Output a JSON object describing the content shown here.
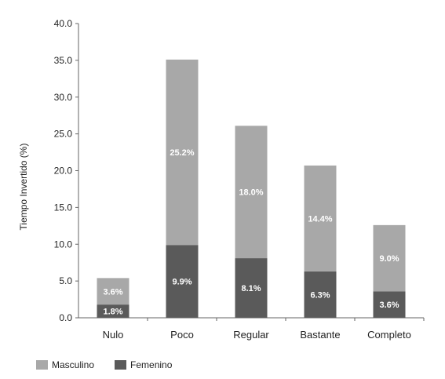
{
  "chart_data": {
    "type": "bar",
    "stacked": true,
    "categories": [
      "Nulo",
      "Poco",
      "Regular",
      "Bastante",
      "Completo"
    ],
    "series": [
      {
        "name": "Femenino",
        "color": "#5a5a5a",
        "values": [
          1.8,
          9.9,
          8.1,
          6.3,
          3.6
        ],
        "labels": [
          "1.8%",
          "9.9%",
          "8.1%",
          "6.3%",
          "3.6%"
        ]
      },
      {
        "name": "Masculino",
        "color": "#a8a8a8",
        "values": [
          3.6,
          25.2,
          18.0,
          14.4,
          9.0
        ],
        "labels": [
          "3.6%",
          "25.2%",
          "18.0%",
          "14.4%",
          "9.0%"
        ]
      }
    ],
    "ylabel": "Tiempo Invertido (%)",
    "xlabel": "",
    "ylim": [
      0,
      40
    ],
    "yticks": [
      "0.0",
      "5.0",
      "10.0",
      "15.0",
      "20.0",
      "25.0",
      "30.0",
      "35.0",
      "40.0"
    ],
    "grid": false,
    "legend_position": "bottom-left"
  },
  "legend": {
    "items": [
      {
        "label": "Masculino",
        "color": "#a8a8a8"
      },
      {
        "label": "Femenino",
        "color": "#5a5a5a"
      }
    ]
  }
}
